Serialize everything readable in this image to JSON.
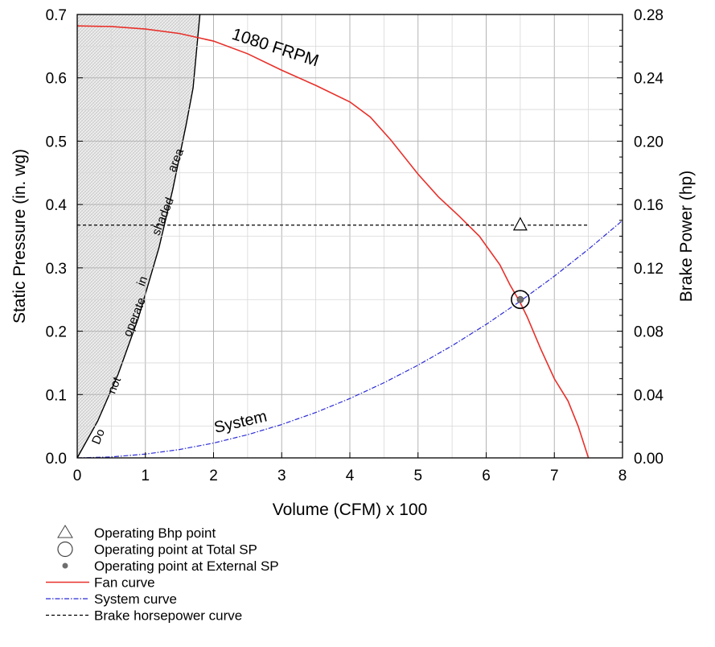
{
  "chart_data": {
    "type": "line",
    "xlabel": "Volume (CFM) x 100",
    "ylabel": "Static Pressure (in. wg)",
    "y2label": "Brake Power (hp)",
    "xlim": [
      0,
      8
    ],
    "ylim": [
      0,
      0.7
    ],
    "y2lim": [
      0,
      0.28
    ],
    "x_ticks": [
      "0",
      "1",
      "2",
      "3",
      "4",
      "5",
      "6",
      "7",
      "8"
    ],
    "y_ticks": [
      "0.0",
      "0.1",
      "0.2",
      "0.3",
      "0.4",
      "0.5",
      "0.6",
      "0.7"
    ],
    "y2_ticks": [
      "0.00",
      "0.04",
      "0.08",
      "0.12",
      "0.16",
      "0.20",
      "0.24",
      "0.28"
    ],
    "grid": true,
    "series": [
      {
        "name": "Fan curve",
        "label": "1080  FRPM",
        "color": "#e8302a",
        "axis": "left",
        "x": [
          0,
          0.5,
          1.0,
          1.5,
          2.0,
          2.5,
          3.0,
          3.5,
          4.0,
          4.3,
          4.6,
          5.0,
          5.3,
          5.6,
          5.9,
          6.2,
          6.35,
          6.5,
          6.6,
          6.8,
          7.0,
          7.2,
          7.35,
          7.5
        ],
        "y": [
          0.682,
          0.681,
          0.677,
          0.67,
          0.658,
          0.638,
          0.612,
          0.588,
          0.562,
          0.538,
          0.502,
          0.448,
          0.412,
          0.382,
          0.35,
          0.305,
          0.273,
          0.245,
          0.223,
          0.172,
          0.125,
          0.09,
          0.05,
          0.0
        ]
      },
      {
        "name": "System curve",
        "label": "System",
        "color": "#2b2bd6",
        "axis": "left",
        "x": [
          0,
          0.5,
          1.0,
          1.5,
          2.0,
          2.5,
          3.0,
          3.5,
          4.0,
          4.5,
          5.0,
          5.5,
          6.0,
          6.5,
          7.0,
          7.5,
          8.0
        ],
        "y": [
          0,
          0.0015,
          0.006,
          0.0132,
          0.0234,
          0.0366,
          0.0527,
          0.0717,
          0.0937,
          0.1186,
          0.1464,
          0.1771,
          0.2108,
          0.2474,
          0.2869,
          0.3294,
          0.3748
        ]
      },
      {
        "name": "Brake horsepower curve",
        "color": "#000000",
        "axis": "right",
        "x": [
          0,
          7.5
        ],
        "y": [
          0.147,
          0.147
        ]
      }
    ],
    "shaded_area": {
      "label_words": [
        "Do",
        "not",
        "operate",
        "in",
        "shaded",
        "area"
      ],
      "boundary_x": [
        0,
        0.3,
        0.6,
        0.9,
        1.2,
        1.4,
        1.6,
        1.7,
        1.8
      ],
      "boundary_y": [
        0,
        0.058,
        0.132,
        0.222,
        0.332,
        0.423,
        0.527,
        0.584,
        0.7
      ]
    },
    "points": {
      "operating_bhp": {
        "x": 6.5,
        "y2": 0.147
      },
      "operating_total_sp": {
        "x": 6.5,
        "y": 0.25
      },
      "operating_external_sp": {
        "x": 6.5,
        "y": 0.25
      }
    },
    "legend": {
      "position": "bottom-left",
      "items": [
        {
          "symbol": "triangle",
          "label": "Operating Bhp point"
        },
        {
          "symbol": "circle",
          "label": "Operating point at Total SP"
        },
        {
          "symbol": "dot",
          "label": "Operating point at External SP"
        },
        {
          "symbol": "line-solid-red",
          "label": "Fan curve"
        },
        {
          "symbol": "line-dashdot-blue",
          "label": "System curve"
        },
        {
          "symbol": "line-dashed-black",
          "label": "Brake horsepower curve"
        }
      ]
    }
  }
}
